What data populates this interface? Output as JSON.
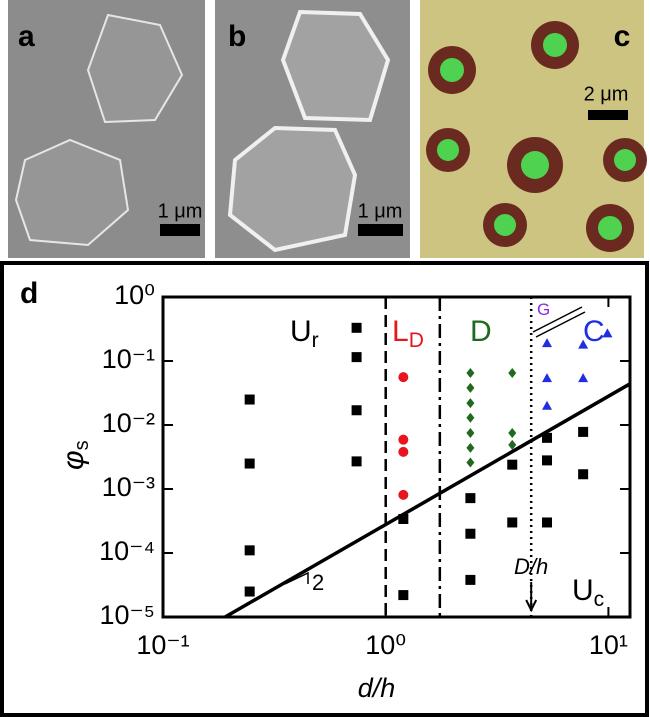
{
  "panels": [
    {
      "label": "a",
      "scale_bar": "1 μm"
    },
    {
      "label": "b",
      "scale_bar": "1 μm"
    },
    {
      "label": "c",
      "scale_bar": "2 μm"
    }
  ],
  "chart_data": {
    "type": "scatter",
    "panel_label": "d",
    "x_label": "d/h",
    "y_label": {
      "main": "φ",
      "sub": "s"
    },
    "log_x": true,
    "log_y": true,
    "xlim": [
      0.1,
      12.5
    ],
    "ylim": [
      1e-05,
      1
    ],
    "xticks": [
      {
        "value": 0.1,
        "label": "10⁻¹"
      },
      {
        "value": 1,
        "label": "10⁰"
      },
      {
        "value": 10,
        "label": "10¹"
      }
    ],
    "yticks": [
      {
        "value": 1e-05,
        "label": "10⁻⁵"
      },
      {
        "value": 0.0001,
        "label": "10⁻⁴"
      },
      {
        "value": 0.001,
        "label": "10⁻³"
      },
      {
        "value": 0.01,
        "label": "10⁻²"
      },
      {
        "value": 0.1,
        "label": "10⁻¹"
      },
      {
        "value": 1,
        "label": "10⁰"
      }
    ],
    "series": [
      {
        "marker": "square",
        "color": "#000000",
        "x": [
          0.245,
          0.245,
          0.245,
          0.245,
          0.74,
          0.74,
          0.74,
          0.74,
          1.2,
          1.2,
          2.4,
          2.4,
          2.4,
          3.7,
          3.7,
          5.3,
          5.3,
          5.3,
          7.7,
          7.7
        ],
        "values": [
          0.025,
          0.0025,
          0.00011,
          2.5e-05,
          0.33,
          0.115,
          0.017,
          0.0027,
          0.00034,
          2.2e-05,
          0.00072,
          0.0002,
          3.8e-05,
          0.0024,
          0.0003,
          0.0063,
          0.0028,
          0.0003,
          0.0078,
          0.0017
        ]
      },
      {
        "marker": "circle",
        "color": "#e8141e",
        "x": [
          1.2,
          1.2,
          1.2,
          1.2
        ],
        "values": [
          0.056,
          0.0059,
          0.0038,
          0.00081
        ]
      },
      {
        "marker": "diamond",
        "color": "#1f6a1f",
        "x": [
          2.4,
          2.4,
          2.4,
          2.4,
          2.4,
          2.4,
          2.4,
          3.7,
          3.7,
          3.7
        ],
        "values": [
          0.065,
          0.038,
          0.022,
          0.013,
          0.0075,
          0.0044,
          0.0026,
          0.065,
          0.0075,
          0.0049
        ]
      },
      {
        "marker": "triangle",
        "color": "#1f2ee0",
        "x": [
          5.3,
          5.3,
          5.3,
          7.7,
          7.7,
          9.9
        ],
        "values": [
          0.19,
          0.054,
          0.02,
          0.18,
          0.054,
          0.27
        ]
      }
    ],
    "fit_line": {
      "x": [
        0.19,
        12.5
      ],
      "values": [
        1e-05,
        0.044
      ],
      "slope_label": "2"
    },
    "boundaries": [
      {
        "x": 1,
        "style": "dashed"
      },
      {
        "x": 1.75,
        "style": "dashdot"
      },
      {
        "x": 4.5,
        "style": "dotted"
      }
    ],
    "regions": [
      {
        "main": "U",
        "sub": "r",
        "color": "#000000"
      },
      {
        "main": "L",
        "sub": "D",
        "color": "#e8141e"
      },
      {
        "main": "D",
        "color": "#1f6a1f"
      },
      {
        "main": "G",
        "color": "#8a2be2"
      },
      {
        "main": "C",
        "color": "#1f2ee0"
      },
      {
        "main": "U",
        "sub": "c",
        "color": "#000000"
      }
    ],
    "annotation": {
      "text": "D/h",
      "x": 4.5
    }
  }
}
